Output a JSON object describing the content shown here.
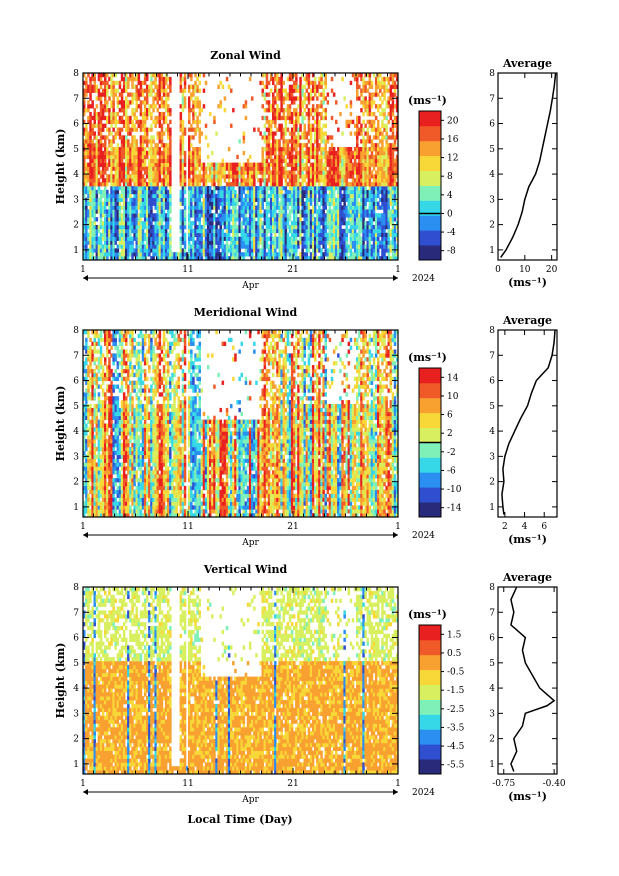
{
  "figure": {
    "x_axis_label": "Local Time (Day)",
    "month_label": "Apr",
    "year_label": "2024",
    "colorbar_unit": "(ms⁻¹)",
    "average_title": "Average",
    "y_axis_label": "Height (km)"
  },
  "chart_data": [
    {
      "type": "heatmap",
      "title": "Zonal Wind",
      "ylabel": "Height (km)",
      "xlabel": "Apr",
      "x_ticks": [
        "1",
        "11",
        "21",
        "1"
      ],
      "x_range_days": [
        1,
        31
      ],
      "y_ticks": [
        "1",
        "2",
        "3",
        "4",
        "5",
        "6",
        "7",
        "8"
      ],
      "ylim": [
        0.6,
        8
      ],
      "colorbar": {
        "unit": "(ms⁻¹)",
        "ticks": [
          "-8",
          "-4",
          "0",
          "4",
          "8",
          "12",
          "16",
          "20"
        ],
        "tick_values": [
          -8,
          -4,
          0,
          4,
          8,
          12,
          16,
          20
        ],
        "range": [
          -10,
          22
        ],
        "zero_line": 0,
        "colormap": [
          "#2a2a7a",
          "#2f4fd0",
          "#2a8ff0",
          "#36d8e8",
          "#7ef0b8",
          "#d8f060",
          "#f8d838",
          "#f8a030",
          "#f05a28",
          "#e82020"
        ]
      },
      "average_profile": {
        "title": "Average",
        "xlabel": "(ms⁻¹)",
        "x_ticks": [
          "0",
          "10",
          "20"
        ],
        "xlim": [
          0,
          22
        ],
        "heights_km": [
          0.7,
          1,
          1.5,
          2,
          2.5,
          3,
          3.5,
          4,
          4.5,
          5,
          5.5,
          6,
          6.5,
          7,
          7.5,
          8
        ],
        "values": [
          1,
          3,
          5.5,
          7.5,
          9,
          10,
          11.5,
          14,
          15.5,
          16.5,
          17.5,
          18.5,
          19.5,
          20.3,
          21,
          21.5
        ]
      }
    },
    {
      "type": "heatmap",
      "title": "Meridional Wind",
      "ylabel": "Height (km)",
      "xlabel": "Apr",
      "x_ticks": [
        "1",
        "11",
        "21",
        "1"
      ],
      "x_range_days": [
        1,
        31
      ],
      "y_ticks": [
        "1",
        "2",
        "3",
        "4",
        "5",
        "6",
        "7",
        "8"
      ],
      "ylim": [
        0.6,
        8
      ],
      "colorbar": {
        "unit": "(ms⁻¹)",
        "ticks": [
          "-14",
          "-10",
          "-6",
          "-2",
          "2",
          "6",
          "10",
          "14"
        ],
        "tick_values": [
          -14,
          -10,
          -6,
          -2,
          2,
          6,
          10,
          14
        ],
        "range": [
          -16,
          16
        ],
        "zero_line": 0,
        "colormap": [
          "#2a2a7a",
          "#2f4fd0",
          "#2a8ff0",
          "#36d8e8",
          "#7ef0b8",
          "#d8f060",
          "#f8d838",
          "#f8a030",
          "#f05a28",
          "#e82020"
        ]
      },
      "average_profile": {
        "title": "Average",
        "xlabel": "(ms⁻¹)",
        "x_ticks": [
          "2",
          "4",
          "6"
        ],
        "xlim": [
          1.3,
          7.3
        ],
        "heights_km": [
          0.7,
          1,
          1.5,
          2,
          2.5,
          3,
          3.5,
          4,
          4.5,
          5,
          5.5,
          6,
          6.5,
          7,
          7.5,
          8
        ],
        "values": [
          1.9,
          1.8,
          1.7,
          1.9,
          1.8,
          2,
          2.4,
          3,
          3.6,
          4.3,
          4.7,
          5.2,
          6.4,
          6.8,
          7,
          7.1
        ]
      }
    },
    {
      "type": "heatmap",
      "title": "Vertical Wind",
      "ylabel": "Height (km)",
      "xlabel": "Local Time (Day)",
      "x_ticks": [
        "1",
        "11",
        "21",
        "1"
      ],
      "x_range_days": [
        1,
        31
      ],
      "y_ticks": [
        "1",
        "2",
        "3",
        "4",
        "5",
        "6",
        "7",
        "8"
      ],
      "ylim": [
        0.6,
        8
      ],
      "colorbar": {
        "unit": "(ms⁻¹)",
        "ticks": [
          "-5.5",
          "-4.5",
          "-3.5",
          "-2.5",
          "-1.5",
          "-0.5",
          "0.5",
          "1.5"
        ],
        "tick_values": [
          -5.5,
          -4.5,
          -3.5,
          -2.5,
          -1.5,
          -0.5,
          0.5,
          1.5
        ],
        "range": [
          -6,
          2
        ],
        "colormap": [
          "#2a2a7a",
          "#2f4fd0",
          "#2a8ff0",
          "#36d8e8",
          "#7ef0b8",
          "#d8f060",
          "#f8d838",
          "#f8a030",
          "#f05a28",
          "#e82020"
        ]
      },
      "average_profile": {
        "title": "Average",
        "xlabel": "(ms⁻¹)",
        "x_ticks": [
          "-0.75",
          "-0.40"
        ],
        "tick_values": [
          -0.75,
          -0.4
        ],
        "xlim": [
          -0.79,
          -0.38
        ],
        "heights_km": [
          0.7,
          1,
          1.5,
          2,
          2.5,
          3,
          3.3,
          3.5,
          4,
          4.5,
          5,
          5.5,
          6,
          6.5,
          7,
          7.5,
          8
        ],
        "values": [
          -0.68,
          -0.7,
          -0.66,
          -0.68,
          -0.62,
          -0.6,
          -0.45,
          -0.4,
          -0.5,
          -0.55,
          -0.6,
          -0.62,
          -0.6,
          -0.7,
          -0.68,
          -0.7,
          -0.66
        ]
      }
    }
  ]
}
